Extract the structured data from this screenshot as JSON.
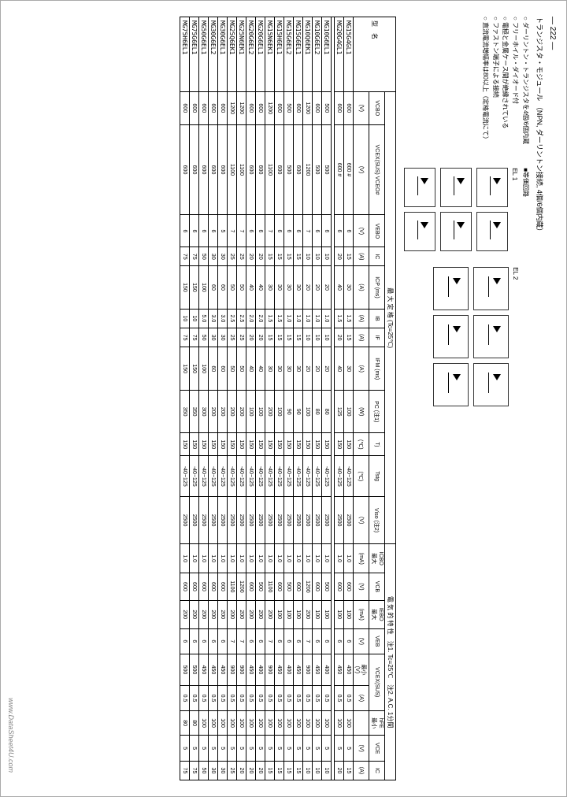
{
  "page_number": "— 222 —",
  "title": "トランジスタ・モジュール （NPN, ダーリントン接続, 4個/6個内蔵）",
  "notes": [
    "ダーリントン・トランジスタを4個/6個内蔵",
    "フリーホイル・ダイオード付",
    "電極と金属ケース間が絶縁されている",
    "ファストン端子による接続",
    "直流電流増幅率は80以上（定格電流にて）"
  ],
  "circ_title": "■等価回路",
  "circ1": "EL 1",
  "circ2": "EL 2",
  "max_ratings_lbl": "最 大 定 格",
  "tc_lbl": "(Tc=25℃)",
  "elec_lbl": "電 気 的 特 性",
  "note1": "注1. Tc=25℃",
  "note2": "注2. A.C. 1分間",
  "headers": {
    "part": "型　名",
    "vcbo": "VCBO",
    "vcex": "VCEX(SUS) VCEO#",
    "vebo": "VEBO",
    "ic": "IC",
    "icp": "ICP (ms)",
    "ib": "IB",
    "if": "IF",
    "ifm": "IFM (ms)",
    "pc": "PC (注1)",
    "tj": "Tj",
    "tstg": "Tstg",
    "viso": "Viso (注2)",
    "icbo": "ICBO",
    "vcb": "VCB",
    "iebo": "IEBO",
    "veb": "VEB",
    "vcexsus": "VCEX(SUS)",
    "hfe": "hFE",
    "vce": "VCE",
    "ic2": "IC",
    "min": "最小",
    "max": "最大",
    "u_v": "(V)",
    "u_a": "(A)",
    "u_w": "(W)",
    "u_c": "(℃)",
    "u_ma": "(mA)"
  },
  "rows1": [
    {
      "p": "MG15G4GL1",
      "d": [
        "600",
        "600 #",
        "6",
        "15",
        "30",
        "1.5",
        "15",
        "30",
        "100",
        "150",
        "-40~125",
        "2500",
        "1.0",
        "600",
        "100",
        "6",
        "450",
        "0.5",
        "100",
        "5",
        "15"
      ]
    },
    {
      "p": "MG20G4GL1",
      "d": [
        "600",
        "600 #",
        "6",
        "20",
        "40",
        "1.5",
        "20",
        "40",
        "125",
        "150",
        "-40~125",
        "2500",
        "1.0",
        "600",
        "100",
        "6",
        "450",
        "0.5",
        "100",
        "5",
        "20"
      ]
    }
  ],
  "rows2": [
    {
      "p": "MG10G6EL1",
      "d": [
        "500",
        "500",
        "6",
        "10",
        "20",
        "1.0",
        "10",
        "20",
        "80",
        "150",
        "-40~125",
        "2500",
        "1.0",
        "500",
        "100",
        "6",
        "400",
        "0.5",
        "100",
        "5",
        "10"
      ]
    },
    {
      "p": "MG10G6EL2",
      "d": [
        "600",
        "500",
        "6",
        "10",
        "20",
        "1.0",
        "10",
        "20",
        "80",
        "150",
        "-40~125",
        "2500",
        "1.0",
        "600",
        "100",
        "6",
        "450",
        "0.5",
        "100",
        "5",
        "10"
      ]
    },
    {
      "p": "MG10Q6EK1",
      "d": [
        "1200",
        "1200",
        "7",
        "10",
        "20",
        "1.0",
        "10",
        "20",
        "100",
        "150",
        "-40~125",
        "2500",
        "1.0",
        "1200",
        "200",
        "7",
        "900",
        "0.5",
        "100",
        "5",
        "10"
      ]
    },
    {
      "p": "MG15G6EL1",
      "d": [
        "600",
        "600",
        "6",
        "15",
        "30",
        "1.0",
        "15",
        "30",
        "90",
        "150",
        "-40~125",
        "2500",
        "1.0",
        "600",
        "100",
        "6",
        "450",
        "0.5",
        "100",
        "5",
        "15"
      ]
    },
    {
      "p": "MG15G6EL2",
      "d": [
        "500",
        "500",
        "6",
        "15",
        "30",
        "1.0",
        "15",
        "30",
        "90",
        "150",
        "-40~125",
        "2500",
        "1.0",
        "500",
        "100",
        "6",
        "400",
        "0.5",
        "100",
        "5",
        "15"
      ]
    },
    {
      "p": "MG15H6EL1",
      "d": [
        "600",
        "600",
        "6",
        "15",
        "30",
        "1.5",
        "15",
        "30",
        "100",
        "150",
        "-40~125",
        "2500",
        "1.0",
        "600",
        "100",
        "6",
        "450",
        "0.5",
        "100",
        "5",
        "15"
      ]
    },
    {
      "p": "MG15N6EK1",
      "d": [
        "1200",
        "1100",
        "7",
        "15",
        "30",
        "1.5",
        "15",
        "30",
        "200",
        "150",
        "-40~125",
        "2500",
        "1.0",
        "1100",
        "200",
        "7",
        "900",
        "0.5",
        "100",
        "5",
        "15"
      ]
    },
    {
      "p": "MG20G6EL1",
      "d": [
        "600",
        "600",
        "6",
        "20",
        "40",
        "2.0",
        "20",
        "40",
        "100",
        "150",
        "-40~125",
        "2500",
        "1.0",
        "500",
        "200",
        "6",
        "400",
        "0.5",
        "100",
        "5",
        "20"
      ]
    },
    {
      "p": "MG20G6EL2",
      "d": [
        "600",
        "600",
        "6",
        "20",
        "40",
        "2.0",
        "20",
        "40",
        "100",
        "150",
        "-40~125",
        "2500",
        "1.0",
        "600",
        "200",
        "6",
        "450",
        "0.5",
        "100",
        "5",
        "20"
      ]
    },
    {
      "p": "MG25N6EK1",
      "d": [
        "1200",
        "1100",
        "7",
        "25",
        "50",
        "2.5",
        "25",
        "50",
        "200",
        "150",
        "-40~125",
        "2500",
        "1.0",
        "1200",
        "200",
        "7",
        "900",
        "0.5",
        "100",
        "5",
        "20"
      ]
    },
    {
      "p": "MG25Q6EK1",
      "d": [
        "1200",
        "1100",
        "7",
        "25",
        "50",
        "2.5",
        "25",
        "50",
        "200",
        "150",
        "-40~125",
        "2500",
        "1.0",
        "1100",
        "200",
        "7",
        "900",
        "0.5",
        "100",
        "5",
        "25"
      ]
    },
    {
      "p": "MG30G6EL1",
      "d": [
        "600",
        "600",
        "5",
        "30",
        "60",
        "3.0",
        "30",
        "60",
        "200",
        "150",
        "-40~125",
        "2500",
        "1.0",
        "600",
        "200",
        "6",
        "450",
        "0.5",
        "100",
        "5",
        "30"
      ]
    },
    {
      "p": "MG30G6EL2",
      "d": [
        "600",
        "600",
        "6",
        "30",
        "60",
        "3.0",
        "30",
        "60",
        "200",
        "150",
        "-40~125",
        "2500",
        "1.0",
        "600",
        "200",
        "6",
        "450",
        "0.5",
        "100",
        "5",
        "30"
      ]
    },
    {
      "p": "MG50G6EL1",
      "d": [
        "600",
        "600",
        "6",
        "50",
        "100",
        "5.0",
        "50",
        "100",
        "300",
        "150",
        "-40~125",
        "2500",
        "1.0",
        "600",
        "200",
        "6",
        "450",
        "0.5",
        "100",
        "5",
        "50"
      ]
    },
    {
      "p": "MG75G6EL1",
      "d": [
        "600",
        "600",
        "6",
        "75",
        "150",
        "10",
        "75",
        "150",
        "350",
        "150",
        "-40~125",
        "2500",
        "1.0",
        "600",
        "200",
        "6",
        "500",
        "0.5",
        "80",
        "5",
        "75"
      ]
    },
    {
      "p": "MG75H6EL1",
      "d": [
        "600",
        "600",
        "6",
        "75",
        "150",
        "10",
        "75",
        "150",
        "350",
        "150",
        "-40~125",
        "2500",
        "1.0",
        "600",
        "200",
        "6",
        "500",
        "0.5",
        "80",
        "5",
        "75"
      ]
    }
  ],
  "watermark": "www.DataSheet4U.com"
}
